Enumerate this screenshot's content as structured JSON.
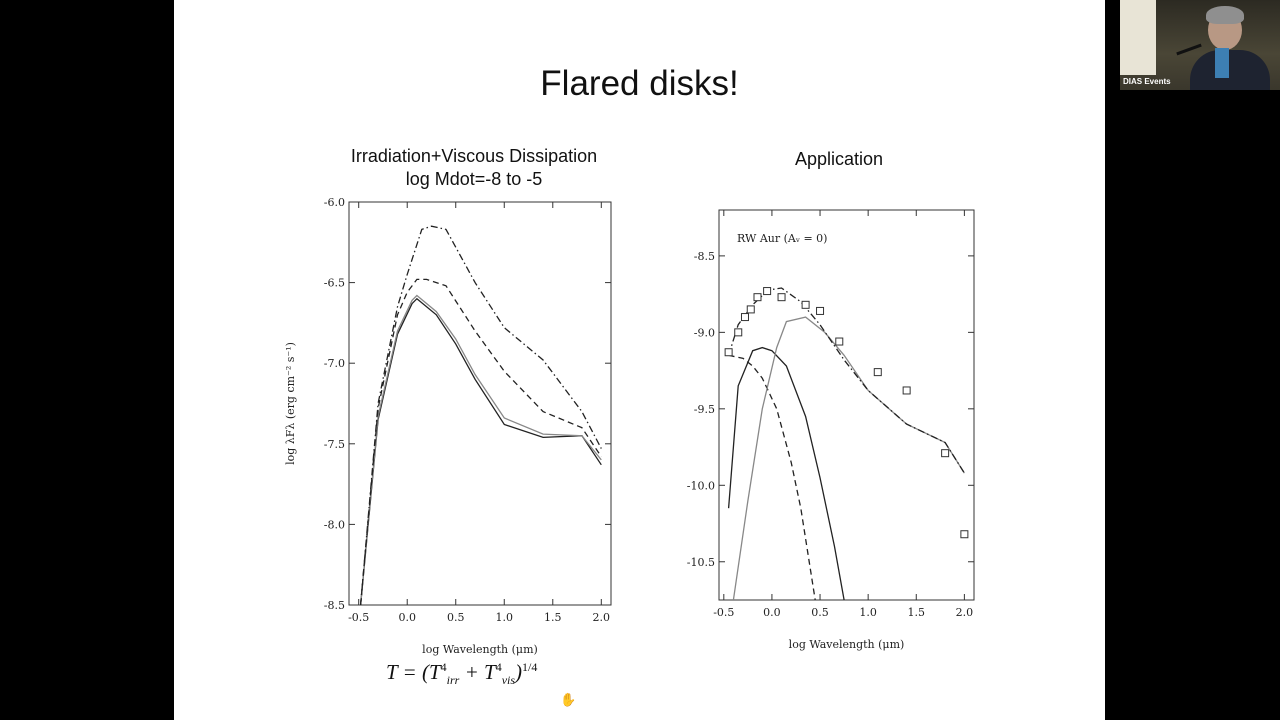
{
  "slide": {
    "title": "Flared disks!",
    "formula": {
      "prefix": "T = (T",
      "irr_sub": "irr",
      "plus": " + T",
      "vis_sub": "vis",
      "power": "1/4",
      "inner_power": "4"
    }
  },
  "webcam": {
    "label": "DIAS Events"
  },
  "chart_data": [
    {
      "type": "line",
      "title_lines": [
        "Irradiation+Viscous Dissipation",
        "log Mdot=-8 to -5"
      ],
      "xlabel": "log Wavelength (μm)",
      "ylabel": "log λFλ (erg cm⁻² s⁻¹)",
      "xlim": [
        -0.6,
        2.1
      ],
      "ylim": [
        -8.5,
        -6.0
      ],
      "x_ticks": [
        "-0.5",
        "0.0",
        "0.5",
        "1.0",
        "1.5",
        "2.0"
      ],
      "x_tick_values": [
        -0.5,
        0.0,
        0.5,
        1.0,
        1.5,
        2.0
      ],
      "y_ticks": [
        "-6.0",
        "-6.5",
        "-7.0",
        "-7.5",
        "-8.0",
        "-8.5"
      ],
      "y_tick_values": [
        -6.0,
        -6.5,
        -7.0,
        -7.5,
        -8.0,
        -8.5
      ],
      "series": [
        {
          "style": "solid",
          "color": "#222",
          "x": [
            -0.48,
            -0.3,
            -0.1,
            0.05,
            0.1,
            0.3,
            0.5,
            0.7,
            1.0,
            1.4,
            1.8,
            2.0
          ],
          "y": [
            -8.5,
            -7.35,
            -6.82,
            -6.63,
            -6.6,
            -6.7,
            -6.88,
            -7.1,
            -7.38,
            -7.46,
            -7.45,
            -7.63
          ]
        },
        {
          "style": "solid",
          "color": "#888",
          "x": [
            -0.48,
            -0.3,
            -0.1,
            0.05,
            0.1,
            0.3,
            0.5,
            0.7,
            1.0,
            1.4,
            1.8,
            2.0
          ],
          "y": [
            -8.5,
            -7.33,
            -6.8,
            -6.61,
            -6.58,
            -6.68,
            -6.85,
            -7.07,
            -7.34,
            -7.44,
            -7.45,
            -7.6
          ]
        },
        {
          "style": "dashed",
          "color": "#222",
          "x": [
            -0.48,
            -0.3,
            -0.1,
            0.0,
            0.1,
            0.2,
            0.4,
            0.7,
            1.0,
            1.4,
            1.8,
            2.0
          ],
          "y": [
            -8.5,
            -7.28,
            -6.7,
            -6.56,
            -6.48,
            -6.48,
            -6.52,
            -6.8,
            -7.05,
            -7.3,
            -7.4,
            -7.58
          ]
        },
        {
          "style": "dashdot",
          "color": "#222",
          "x": [
            -0.48,
            -0.3,
            -0.1,
            0.0,
            0.15,
            0.25,
            0.4,
            0.7,
            1.0,
            1.4,
            1.8,
            2.0
          ],
          "y": [
            -8.5,
            -7.25,
            -6.65,
            -6.45,
            -6.17,
            -6.15,
            -6.17,
            -6.5,
            -6.78,
            -6.98,
            -7.3,
            -7.53
          ]
        }
      ]
    },
    {
      "type": "line",
      "title_lines": [
        "Application"
      ],
      "annotation": "RW Aur (Aᵥ = 0)",
      "xlabel": "log Wavelength (μm)",
      "ylabel": "",
      "xlim": [
        -0.55,
        2.1
      ],
      "ylim": [
        -10.75,
        -8.2
      ],
      "x_ticks": [
        "-0.5",
        "0.0",
        "0.5",
        "1.0",
        "1.5",
        "2.0"
      ],
      "x_tick_values": [
        -0.5,
        0.0,
        0.5,
        1.0,
        1.5,
        2.0
      ],
      "y_ticks": [
        "-8.5",
        "-9.0",
        "-9.5",
        "-10.0",
        "-10.5"
      ],
      "y_tick_values": [
        -8.5,
        -9.0,
        -9.5,
        -10.0,
        -10.5
      ],
      "series": [
        {
          "style": "solid",
          "color": "#222",
          "x": [
            -0.45,
            -0.35,
            -0.2,
            -0.1,
            0.0,
            0.15,
            0.35,
            0.5,
            0.65,
            0.75
          ],
          "y": [
            -10.15,
            -9.35,
            -9.12,
            -9.1,
            -9.12,
            -9.22,
            -9.55,
            -9.95,
            -10.4,
            -10.75
          ]
        },
        {
          "style": "dashed",
          "color": "#222",
          "x": [
            -0.45,
            -0.3,
            -0.2,
            -0.1,
            0.05,
            0.2,
            0.3,
            0.45
          ],
          "y": [
            -9.15,
            -9.17,
            -9.22,
            -9.3,
            -9.5,
            -9.85,
            -10.15,
            -10.75
          ]
        },
        {
          "style": "solid",
          "color": "#888",
          "x": [
            -0.4,
            -0.25,
            -0.1,
            0.05,
            0.15,
            0.35,
            0.55,
            0.75,
            1.0,
            1.4,
            1.8,
            2.0
          ],
          "y": [
            -10.75,
            -10.1,
            -9.5,
            -9.1,
            -8.93,
            -8.9,
            -9.0,
            -9.15,
            -9.38,
            -9.6,
            -9.72,
            -9.92
          ]
        },
        {
          "style": "dashdot",
          "color": "#222",
          "x": [
            -0.45,
            -0.35,
            -0.2,
            -0.1,
            0.0,
            0.1,
            0.3,
            0.5,
            0.75,
            1.0,
            1.4,
            1.8,
            2.0
          ],
          "y": [
            -9.15,
            -8.95,
            -8.82,
            -8.76,
            -8.72,
            -8.71,
            -8.8,
            -8.95,
            -9.18,
            -9.38,
            -9.6,
            -9.72,
            -9.92
          ]
        }
      ],
      "points": {
        "x": [
          -0.45,
          -0.35,
          -0.28,
          -0.22,
          -0.15,
          -0.05,
          0.1,
          0.35,
          0.5,
          0.7,
          1.1,
          1.4,
          1.8,
          2.0
        ],
        "y": [
          -9.13,
          -9.0,
          -8.9,
          -8.85,
          -8.77,
          -8.73,
          -8.77,
          -8.82,
          -8.86,
          -9.06,
          -9.26,
          -9.38,
          -9.79,
          -10.32
        ]
      }
    }
  ]
}
